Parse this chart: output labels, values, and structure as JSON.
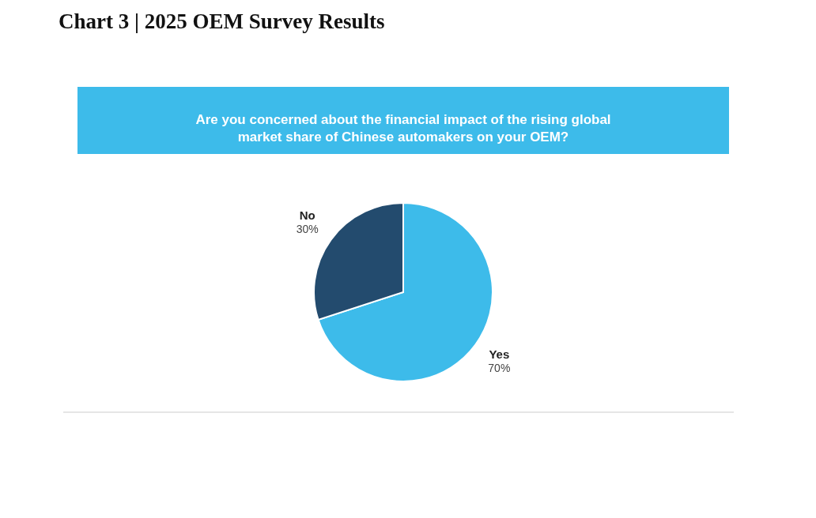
{
  "chart_data": {
    "type": "pie",
    "title": "Chart 3 | 2025 OEM Survey Results",
    "subtitle": "Are you concerned about the financial impact of the rising global\nmarket share of Chinese automakers on your OEM?",
    "categories": [
      "Yes",
      "No"
    ],
    "values": [
      70,
      30
    ],
    "colors": [
      "#3dbbea",
      "#234b6e"
    ],
    "value_labels": [
      "70%",
      "30%"
    ],
    "legend": false
  }
}
